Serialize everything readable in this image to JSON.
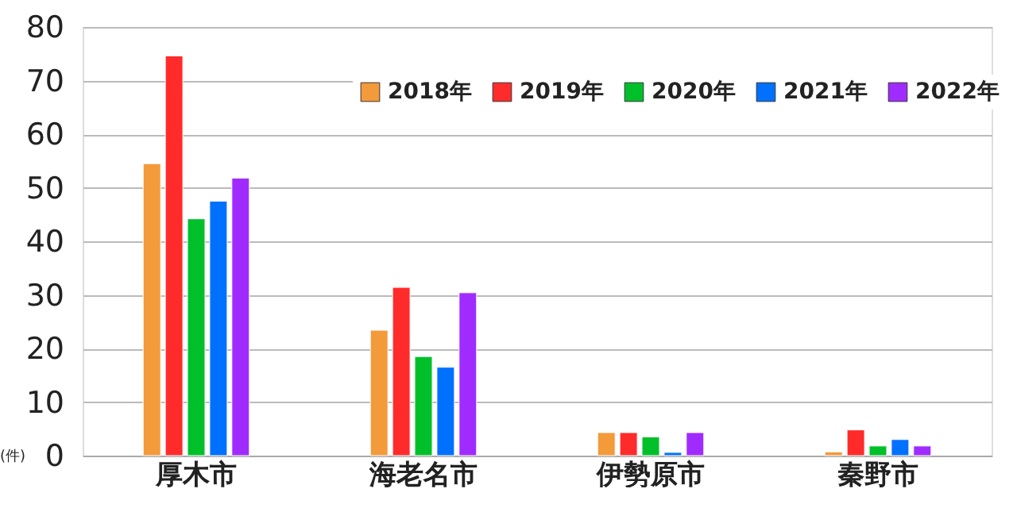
{
  "chart_data": {
    "type": "bar",
    "categories": [
      "厚木市",
      "海老名市",
      "伊勢原市",
      "秦野市"
    ],
    "series": [
      {
        "name": "2018年",
        "color": "#f39a3a",
        "values": [
          54.5,
          23.4,
          4.3,
          0.7
        ]
      },
      {
        "name": "2019年",
        "color": "#ff2b2b",
        "values": [
          74.6,
          31.4,
          4.3,
          4.8
        ]
      },
      {
        "name": "2020年",
        "color": "#00c02a",
        "values": [
          44.2,
          18.5,
          3.5,
          1.8
        ]
      },
      {
        "name": "2021年",
        "color": "#0070ff",
        "values": [
          47.5,
          16.5,
          0.6,
          3.0
        ]
      },
      {
        "name": "2022年",
        "color": "#a02bff",
        "values": [
          51.8,
          30.4,
          4.3,
          1.8
        ]
      }
    ],
    "ylim": [
      0,
      80
    ],
    "yticks": [
      0,
      10,
      20,
      30,
      40,
      50,
      60,
      70,
      80
    ],
    "grid": "y",
    "legend": "top right",
    "annotations": [
      "(件)"
    ]
  }
}
